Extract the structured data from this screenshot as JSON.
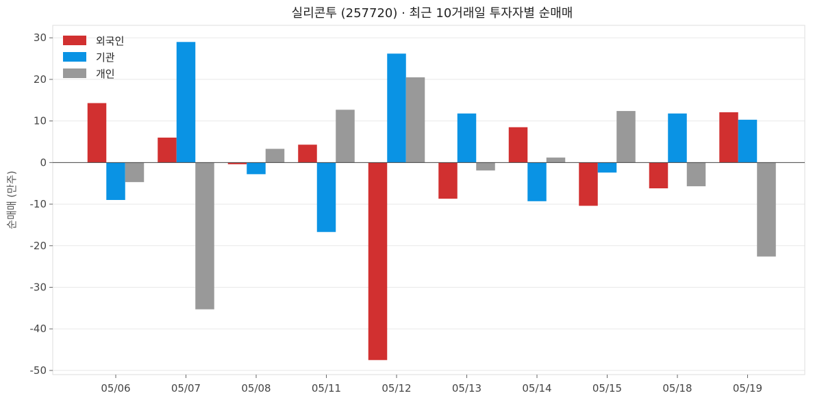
{
  "chart_data": {
    "type": "bar",
    "title": "실리콘투 (257720) · 최근 10거래일 투자자별 순매매",
    "xlabel": "",
    "ylabel": "순매매 (만주)",
    "categories": [
      "05/06",
      "05/07",
      "05/08",
      "05/11",
      "05/12",
      "05/13",
      "05/14",
      "05/15",
      "05/18",
      "05/19"
    ],
    "series": [
      {
        "name": "외국인",
        "color": "#d13030",
        "values": [
          14.3,
          6.0,
          -0.4,
          4.3,
          -47.5,
          -8.7,
          8.5,
          -10.4,
          -6.2,
          12.1
        ]
      },
      {
        "name": "기관",
        "color": "#0a93e4",
        "values": [
          -9.0,
          29.0,
          -2.8,
          -16.7,
          26.2,
          11.8,
          -9.3,
          -2.4,
          11.8,
          10.3
        ]
      },
      {
        "name": "개인",
        "color": "#999999",
        "values": [
          -4.7,
          -35.3,
          3.3,
          12.7,
          20.5,
          -1.9,
          1.2,
          12.4,
          -5.7,
          -22.6
        ]
      }
    ],
    "ylim": [
      -51,
      33
    ],
    "yticks": [
      30,
      20,
      10,
      0,
      -10,
      -20,
      -30,
      -40,
      -50
    ],
    "grid": true,
    "legend": "top-left"
  }
}
